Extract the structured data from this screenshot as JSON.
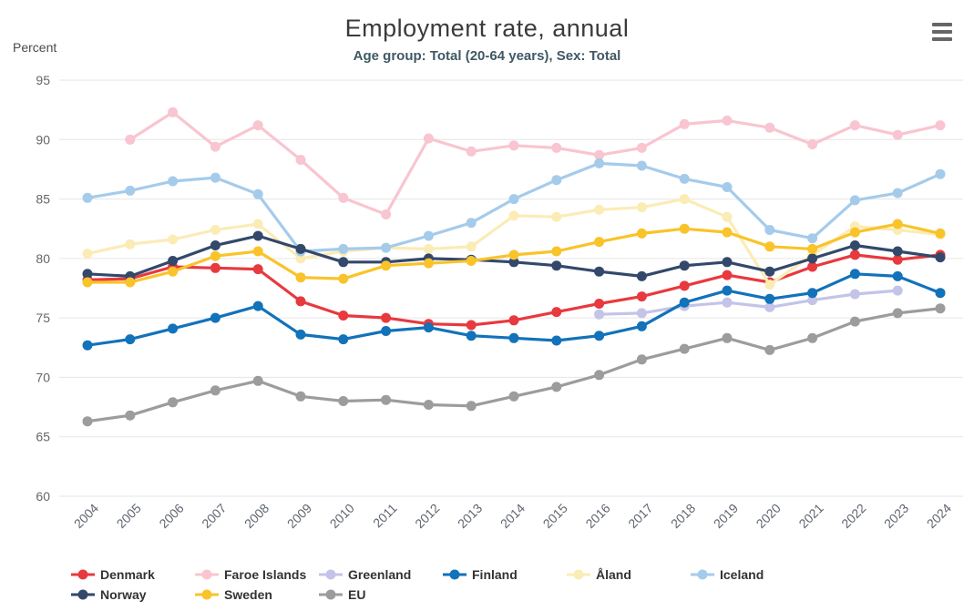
{
  "header": {
    "title": "Employment rate, annual",
    "subtitle": "Age group: Total (20-64 years), Sex: Total",
    "y_axis_title": "Percent"
  },
  "menu": {
    "icon": "hamburger-menu-icon"
  },
  "chart_data": {
    "type": "line",
    "title": "Employment rate, annual",
    "subtitle": "Age group: Total (20-64 years), Sex: Total",
    "ylabel": "Percent",
    "xlabel": "",
    "ylim": [
      60,
      95
    ],
    "ytick_step": 5,
    "yticks": [
      95,
      90,
      85,
      80,
      75,
      70,
      65,
      60
    ],
    "grid": true,
    "legend_position": "bottom",
    "x": [
      2004,
      2005,
      2006,
      2007,
      2008,
      2009,
      2010,
      2011,
      2012,
      2013,
      2014,
      2015,
      2016,
      2017,
      2018,
      2019,
      2020,
      2021,
      2022,
      2023,
      2024
    ],
    "series": [
      {
        "name": "Denmark",
        "color": "#e8393f",
        "values": [
          78.2,
          78.3,
          79.3,
          79.2,
          79.1,
          76.4,
          75.2,
          75.0,
          74.5,
          74.4,
          74.8,
          75.5,
          76.2,
          76.8,
          77.7,
          78.6,
          78.0,
          79.3,
          80.3,
          79.9,
          80.3
        ]
      },
      {
        "name": "Faroe Islands",
        "color": "#f8c5d0",
        "values": [
          null,
          90.0,
          92.3,
          89.4,
          91.2,
          88.3,
          85.1,
          83.7,
          90.1,
          89.0,
          89.5,
          89.3,
          88.7,
          89.3,
          91.3,
          91.6,
          91.0,
          89.6,
          91.2,
          90.4,
          91.2
        ]
      },
      {
        "name": "Greenland",
        "color": "#c4c3e8",
        "values": [
          null,
          null,
          null,
          null,
          null,
          null,
          null,
          null,
          null,
          null,
          null,
          null,
          75.3,
          75.4,
          76.0,
          76.3,
          75.9,
          76.5,
          77.0,
          77.3,
          null
        ]
      },
      {
        "name": "Finland",
        "color": "#1272ba",
        "values": [
          72.7,
          73.2,
          74.1,
          75.0,
          76.0,
          73.6,
          73.2,
          73.9,
          74.2,
          73.5,
          73.3,
          73.1,
          73.5,
          74.3,
          76.3,
          77.3,
          76.6,
          77.1,
          78.7,
          78.5,
          77.1
        ]
      },
      {
        "name": "Åland",
        "color": "#fbecb6",
        "values": [
          80.4,
          81.2,
          81.6,
          82.4,
          82.9,
          80.0,
          80.6,
          80.9,
          80.8,
          81.0,
          83.6,
          83.5,
          84.1,
          84.3,
          85.0,
          83.5,
          77.8,
          80.3,
          82.7,
          82.4,
          82.0
        ]
      },
      {
        "name": "Iceland",
        "color": "#a5cbeb",
        "values": [
          85.1,
          85.7,
          86.5,
          86.8,
          85.4,
          80.6,
          80.8,
          80.9,
          81.9,
          83.0,
          85.0,
          86.6,
          88.0,
          87.8,
          86.7,
          86.0,
          82.4,
          81.7,
          84.9,
          85.5,
          87.1
        ]
      },
      {
        "name": "Norway",
        "color": "#33486b",
        "values": [
          78.7,
          78.5,
          79.8,
          81.1,
          81.9,
          80.8,
          79.7,
          79.7,
          80.0,
          79.9,
          79.7,
          79.4,
          78.9,
          78.5,
          79.4,
          79.7,
          78.9,
          80.0,
          81.1,
          80.6,
          80.1
        ]
      },
      {
        "name": "Sweden",
        "color": "#f9c32a",
        "values": [
          78.0,
          78.0,
          78.9,
          80.2,
          80.6,
          78.4,
          78.3,
          79.4,
          79.6,
          79.8,
          80.3,
          80.6,
          81.4,
          82.1,
          82.5,
          82.2,
          81.0,
          80.8,
          82.2,
          82.9,
          82.1
        ]
      },
      {
        "name": "EU",
        "color": "#9c9c9c",
        "values": [
          66.3,
          66.8,
          67.9,
          68.9,
          69.7,
          68.4,
          68.0,
          68.1,
          67.7,
          67.6,
          68.4,
          69.2,
          70.2,
          71.5,
          72.4,
          73.3,
          72.3,
          73.3,
          74.7,
          75.4,
          75.8
        ]
      }
    ],
    "style": {
      "gridline_color": "#e6e6e6",
      "tick_label_color": "#666666",
      "x_label_color": "#5f6670",
      "line_width": 3.2,
      "marker_radius": 5.5
    }
  }
}
